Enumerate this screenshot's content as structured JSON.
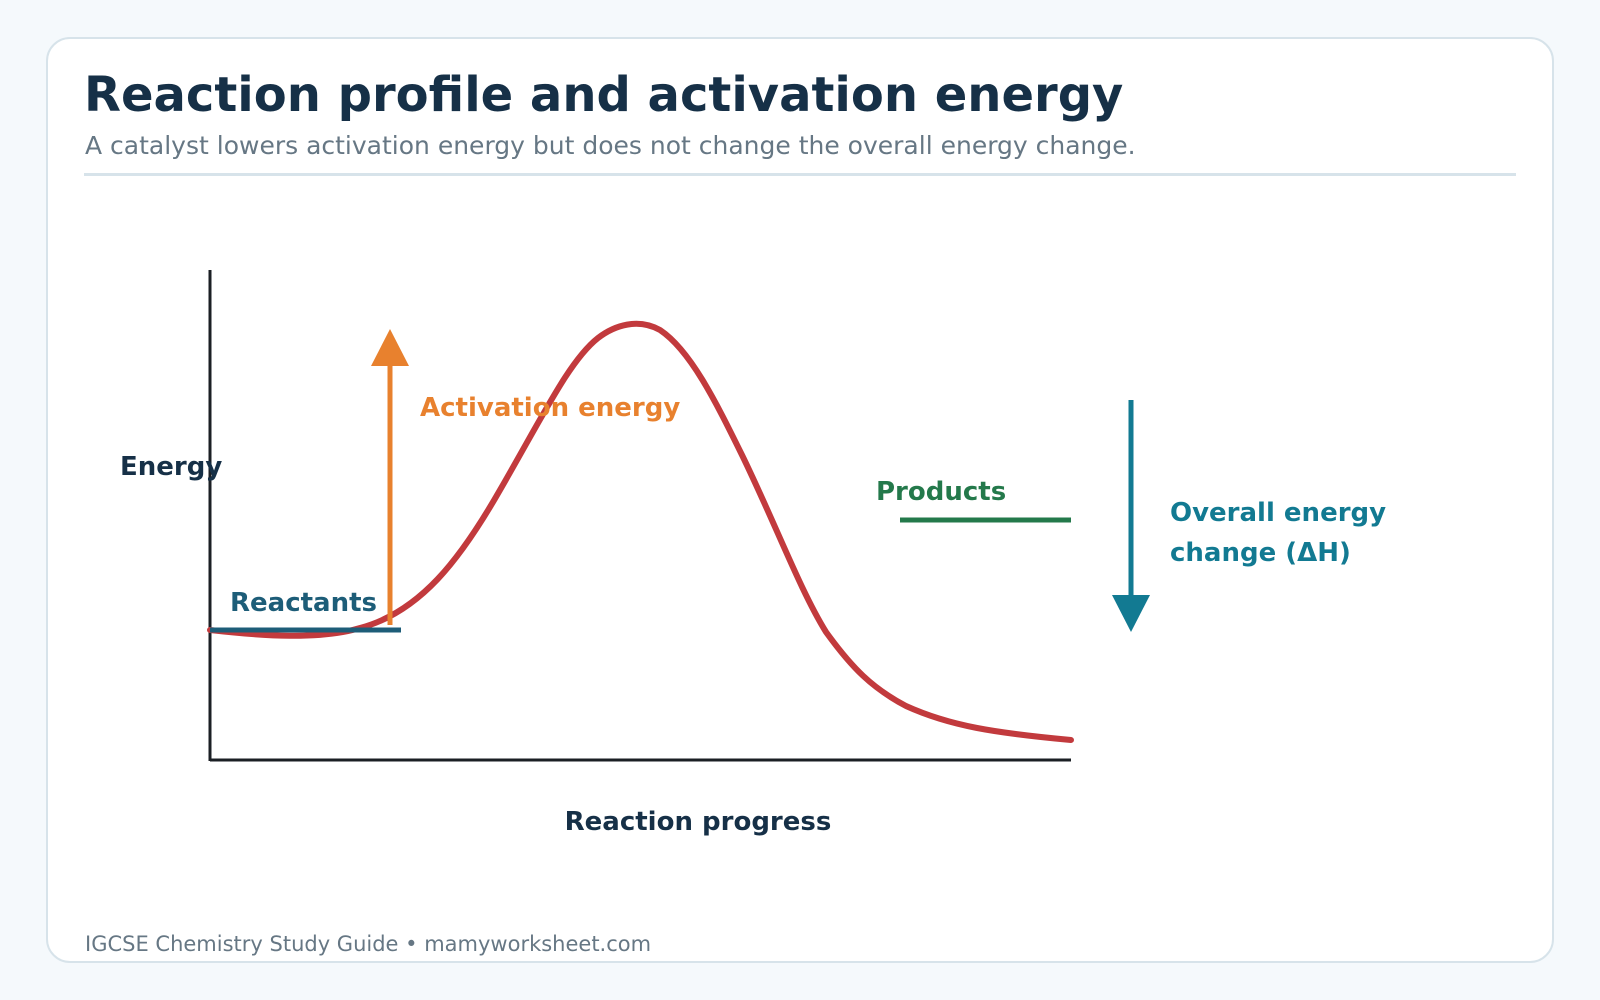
{
  "header": {
    "title": "Reaction profile and activation energy",
    "subtitle": "A catalyst lowers activation energy but does not change the overall energy change."
  },
  "diagram": {
    "y_axis_label": "Energy",
    "x_axis_label": "Reaction progress",
    "reactants_label": "Reactants",
    "activation_energy_label": "Activation energy",
    "products_label": "Products",
    "overall_change_label_line1": "Overall energy",
    "overall_change_label_line2": "change (ΔH)"
  },
  "colors": {
    "title": "#163047",
    "curve": "#c23a3d",
    "activation_arrow": "#e8812e",
    "reactants": "#1d5d78",
    "products": "#24794b",
    "overall_change": "#127a92",
    "axis": "#1b1f24",
    "muted_text": "#667784"
  },
  "footer": {
    "credit": "IGCSE Chemistry Study Guide • mamyworksheet.com"
  }
}
